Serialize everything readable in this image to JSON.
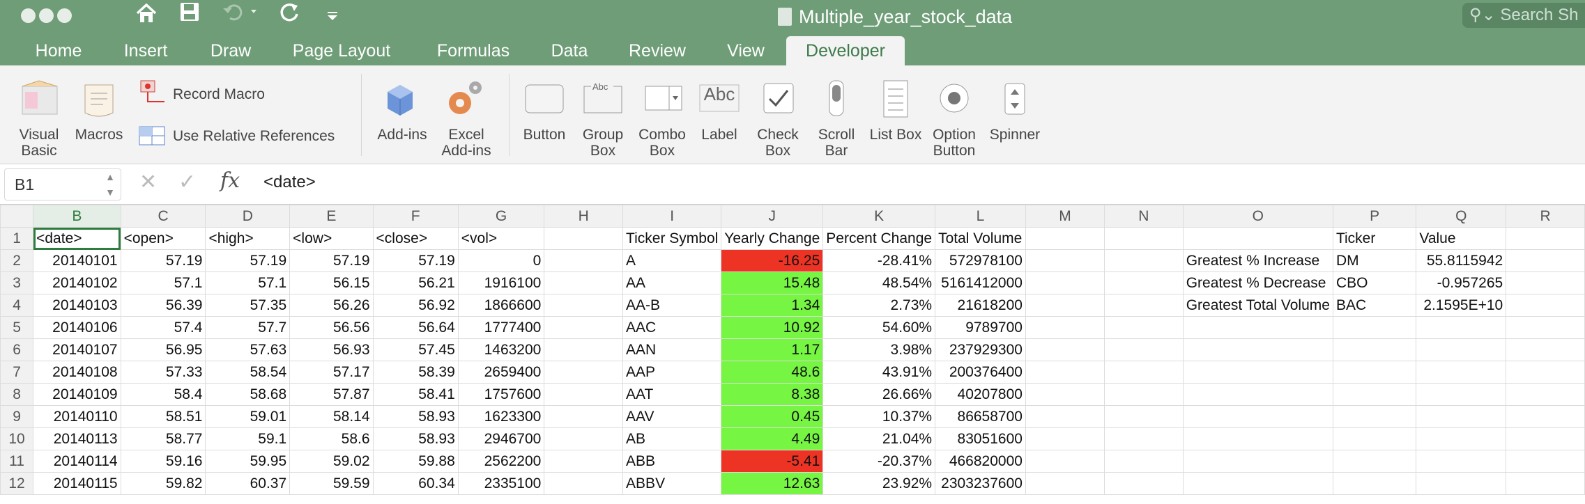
{
  "window": {
    "title": "Multiple_year_stock_data",
    "search_placeholder": "Search Sh"
  },
  "tabs": [
    {
      "label": "Home"
    },
    {
      "label": "Insert"
    },
    {
      "label": "Draw"
    },
    {
      "label": "Page Layout"
    },
    {
      "label": "Formulas"
    },
    {
      "label": "Data"
    },
    {
      "label": "Review"
    },
    {
      "label": "View"
    },
    {
      "label": "Developer"
    }
  ],
  "active_tab": "Developer",
  "ribbon": {
    "visual_basic": "Visual Basic",
    "macros": "Macros",
    "record_macro": "Record Macro",
    "relative_refs": "Use Relative References",
    "addins": "Add-ins",
    "excel_addins": "Excel Add-ins",
    "button": "Button",
    "group_box": "Group Box",
    "combo_box": "Combo Box",
    "label": "Label",
    "check_box": "Check Box",
    "scroll_bar": "Scroll Bar",
    "list_box": "List Box",
    "option_button": "Option Button",
    "spinner": "Spinner",
    "label_glyph": "Abc"
  },
  "formula_bar": {
    "cell_ref": "B1",
    "fx": "fx",
    "value": "<date>"
  },
  "columns": [
    "B",
    "C",
    "D",
    "E",
    "F",
    "G",
    "H",
    "I",
    "J",
    "K",
    "L",
    "M",
    "N",
    "O",
    "P",
    "Q",
    "R"
  ],
  "rows": [
    {
      "n": "1",
      "cells": [
        "<date>",
        "<open>",
        "<high>",
        "<low>",
        "<close>",
        "<vol>",
        "",
        "Ticker Symbol",
        "Yearly Change",
        "Percent Change",
        "Total Volume",
        "",
        "",
        "",
        "Ticker",
        "Value",
        ""
      ]
    },
    {
      "n": "2",
      "cells": [
        "20140101",
        "57.19",
        "57.19",
        "57.19",
        "57.19",
        "0",
        "",
        "A",
        "-16.25",
        "-28.41%",
        "572978100",
        "",
        "",
        "Greatest % Increase",
        "DM",
        "55.8115942",
        ""
      ]
    },
    {
      "n": "3",
      "cells": [
        "20140102",
        "57.1",
        "57.1",
        "56.15",
        "56.21",
        "1916100",
        "",
        "AA",
        "15.48",
        "48.54%",
        "5161412000",
        "",
        "",
        "Greatest % Decrease",
        "CBO",
        "-0.957265",
        ""
      ]
    },
    {
      "n": "4",
      "cells": [
        "20140103",
        "56.39",
        "57.35",
        "56.26",
        "56.92",
        "1866600",
        "",
        "AA-B",
        "1.34",
        "2.73%",
        "21618200",
        "",
        "",
        "Greatest Total Volume",
        "BAC",
        "2.1595E+10",
        ""
      ]
    },
    {
      "n": "5",
      "cells": [
        "20140106",
        "57.4",
        "57.7",
        "56.56",
        "56.64",
        "1777400",
        "",
        "AAC",
        "10.92",
        "54.60%",
        "9789700",
        "",
        "",
        "",
        "",
        "",
        ""
      ]
    },
    {
      "n": "6",
      "cells": [
        "20140107",
        "56.95",
        "57.63",
        "56.93",
        "57.45",
        "1463200",
        "",
        "AAN",
        "1.17",
        "3.98%",
        "237929300",
        "",
        "",
        "",
        "",
        "",
        ""
      ]
    },
    {
      "n": "7",
      "cells": [
        "20140108",
        "57.33",
        "58.54",
        "57.17",
        "58.39",
        "2659400",
        "",
        "AAP",
        "48.6",
        "43.91%",
        "200376400",
        "",
        "",
        "",
        "",
        "",
        ""
      ]
    },
    {
      "n": "8",
      "cells": [
        "20140109",
        "58.4",
        "58.68",
        "57.87",
        "58.41",
        "1757600",
        "",
        "AAT",
        "8.38",
        "26.66%",
        "40207800",
        "",
        "",
        "",
        "",
        "",
        ""
      ]
    },
    {
      "n": "9",
      "cells": [
        "20140110",
        "58.51",
        "59.01",
        "58.14",
        "58.93",
        "1623300",
        "",
        "AAV",
        "0.45",
        "10.37%",
        "86658700",
        "",
        "",
        "",
        "",
        "",
        ""
      ]
    },
    {
      "n": "10",
      "cells": [
        "20140113",
        "58.77",
        "59.1",
        "58.6",
        "58.93",
        "2946700",
        "",
        "AB",
        "4.49",
        "21.04%",
        "83051600",
        "",
        "",
        "",
        "",
        "",
        ""
      ]
    },
    {
      "n": "11",
      "cells": [
        "20140114",
        "59.16",
        "59.95",
        "59.02",
        "59.88",
        "2562200",
        "",
        "ABB",
        "-5.41",
        "-20.37%",
        "466820000",
        "",
        "",
        "",
        "",
        "",
        ""
      ]
    },
    {
      "n": "12",
      "cells": [
        "20140115",
        "59.82",
        "60.37",
        "59.59",
        "60.34",
        "2335100",
        "",
        "ABBV",
        "12.63",
        "23.92%",
        "2303237600",
        "",
        "",
        "",
        "",
        "",
        ""
      ]
    }
  ],
  "colors": {
    "titlebar": "#6e9d77",
    "positive": "#76f542",
    "negative": "#ec3324",
    "accent": "#3d7a4a"
  }
}
